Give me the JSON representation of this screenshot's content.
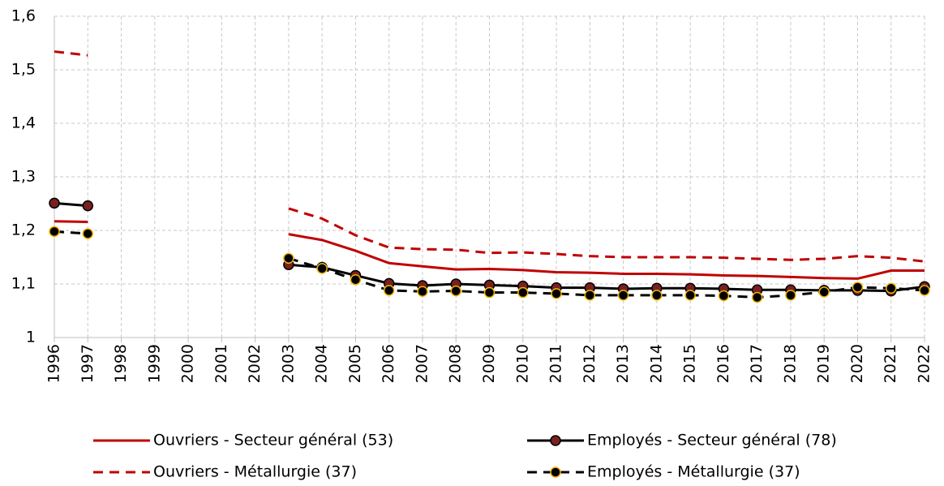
{
  "chart_data": {
    "type": "line",
    "categories": [
      "1996",
      "1997",
      "1998",
      "1999",
      "2000",
      "2001",
      "2002",
      "2003",
      "2004",
      "2005",
      "2006",
      "2007",
      "2008",
      "2009",
      "2010",
      "2011",
      "2012",
      "2013",
      "2014",
      "2015",
      "2016",
      "2017",
      "2018",
      "2019",
      "2020",
      "2021",
      "2022"
    ],
    "ylim": [
      1,
      1.6
    ],
    "yticks": [
      1,
      {
        "value": 1.1,
        "label": "1,1"
      },
      {
        "value": 1.2,
        "label": "1,2"
      },
      {
        "value": 1.3,
        "label": "1,3"
      },
      {
        "value": 1.4,
        "label": "1,4"
      },
      {
        "value": 1.5,
        "label": "1,5"
      },
      {
        "value": 1.6,
        "label": "1,6"
      }
    ],
    "grid": true,
    "series": [
      {
        "name": "Ouvriers - Secteur général (53)",
        "color": "#c00000",
        "line_style": "solid",
        "marker": false,
        "values": [
          1.217,
          1.216,
          null,
          null,
          null,
          null,
          null,
          1.193,
          1.182,
          1.162,
          1.139,
          1.133,
          1.127,
          1.128,
          1.126,
          1.122,
          1.121,
          1.119,
          1.119,
          1.118,
          1.116,
          1.115,
          1.113,
          1.111,
          1.11,
          1.125,
          1.125
        ]
      },
      {
        "name": "Employés - Secteur général (78)",
        "color": "#000000",
        "line_style": "solid",
        "marker": true,
        "marker_fill": "#7a2020",
        "marker_edge": "#000000",
        "values": [
          1.251,
          1.246,
          null,
          null,
          null,
          null,
          null,
          1.136,
          1.131,
          1.116,
          1.101,
          1.097,
          1.1,
          1.098,
          1.096,
          1.093,
          1.093,
          1.091,
          1.092,
          1.092,
          1.091,
          1.089,
          1.089,
          1.088,
          1.088,
          1.087,
          1.095
        ]
      },
      {
        "name": "Ouvriers - Métallurgie (37)",
        "color": "#c00000",
        "line_style": "dashed",
        "marker": false,
        "values": [
          1.534,
          1.527,
          null,
          null,
          null,
          null,
          null,
          1.241,
          1.222,
          1.191,
          1.168,
          1.165,
          1.164,
          1.158,
          1.159,
          1.156,
          1.152,
          1.15,
          1.15,
          1.15,
          1.149,
          1.147,
          1.145,
          1.147,
          1.152,
          1.149,
          1.142
        ]
      },
      {
        "name": "Employés - Métallurgie (37)",
        "color": "#000000",
        "line_style": "dashed",
        "marker": true,
        "marker_fill": "#000000",
        "marker_edge": "#f0b400",
        "values": [
          1.198,
          1.194,
          null,
          null,
          null,
          null,
          null,
          1.148,
          1.129,
          1.108,
          1.088,
          1.086,
          1.087,
          1.084,
          1.084,
          1.082,
          1.079,
          1.079,
          1.079,
          1.079,
          1.078,
          1.075,
          1.079,
          1.085,
          1.094,
          1.092,
          1.088
        ]
      }
    ]
  }
}
